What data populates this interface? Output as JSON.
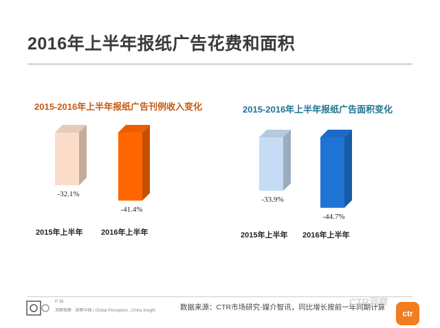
{
  "page": {
    "title": "2016年上半年报纸广告花费和面积",
    "page_number": "P 16",
    "tagline": "洞察观察 · 洞察中国 | Global Perception , China Insight",
    "source": "数据来源：CTR市场研究-媒介智讯，同比增长按前一年同期计算",
    "watermark": "CTR洞察",
    "badge": "ctr"
  },
  "chart_data": [
    {
      "type": "bar",
      "title": "2015-2016年上半年报纸广告刊例收入变化",
      "title_color": "#c55a11",
      "categories": [
        "2015年上半年",
        "2016年上半年"
      ],
      "values": [
        -32.1,
        -41.4
      ],
      "labels": [
        "-32.1%",
        "-41.4%"
      ],
      "colors": [
        "#fbdcc8",
        "#ff6600"
      ],
      "ylim": [
        -50,
        0
      ],
      "xlabel": "",
      "ylabel": ""
    },
    {
      "type": "bar",
      "title": "2015-2016年上半年报纸广告面积变化",
      "title_color": "#1f7391",
      "categories": [
        "2015年上半年",
        "2016年上半年"
      ],
      "values": [
        -33.9,
        -44.7
      ],
      "labels": [
        "-33.9%",
        "-44.7%"
      ],
      "colors": [
        "#c5dcf4",
        "#1e73d4"
      ],
      "ylim": [
        -50,
        0
      ],
      "xlabel": "",
      "ylabel": ""
    }
  ]
}
